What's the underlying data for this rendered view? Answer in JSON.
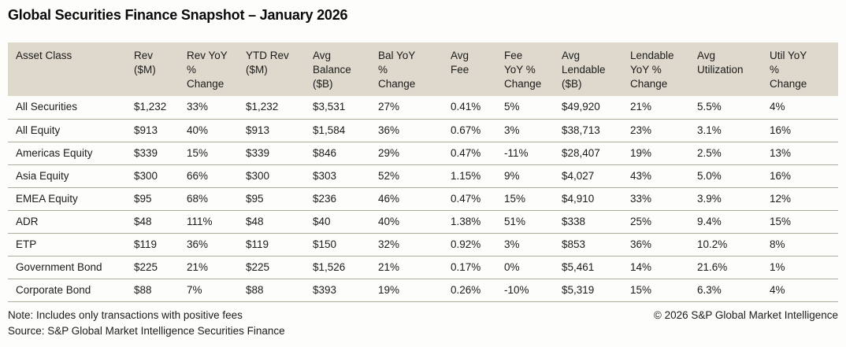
{
  "title": "Global Securities Finance Snapshot – January 2026",
  "chart_data": {
    "type": "table",
    "title": "Global Securities Finance Snapshot – January 2026",
    "columns": [
      "Asset Class",
      "Rev\n($M)",
      "Rev YoY\n%\nChange",
      "YTD Rev\n($M)",
      "Avg\nBalance\n($B)",
      "Bal YoY\n%\nChange",
      "Avg\nFee",
      "Fee\nYoY %\nChange",
      "Avg\nLendable\n($B)",
      "Lendable\nYoY %\nChange",
      "Avg\nUtilization",
      "Util YoY\n%\nChange"
    ],
    "rows": [
      [
        "All Securities",
        "$1,232",
        "33%",
        "$1,232",
        "$3,531",
        "27%",
        "0.41%",
        "5%",
        "$49,920",
        "21%",
        "5.5%",
        "4%"
      ],
      [
        "All Equity",
        "$913",
        "40%",
        "$913",
        "$1,584",
        "36%",
        "0.67%",
        "3%",
        "$38,713",
        "23%",
        "3.1%",
        "16%"
      ],
      [
        "Americas Equity",
        "$339",
        "15%",
        "$339",
        "$846",
        "29%",
        "0.47%",
        "-11%",
        "$28,407",
        "19%",
        "2.5%",
        "13%"
      ],
      [
        "Asia Equity",
        "$300",
        "66%",
        "$300",
        "$303",
        "52%",
        "1.15%",
        "9%",
        "$4,027",
        "43%",
        "5.0%",
        "16%"
      ],
      [
        "EMEA Equity",
        "$95",
        "68%",
        "$95",
        "$236",
        "46%",
        "0.47%",
        "15%",
        "$4,910",
        "33%",
        "3.9%",
        "12%"
      ],
      [
        "ADR",
        "$48",
        "111%",
        "$48",
        "$40",
        "40%",
        "1.38%",
        "51%",
        "$338",
        "25%",
        "9.4%",
        "15%"
      ],
      [
        "ETP",
        "$119",
        "36%",
        "$119",
        "$150",
        "32%",
        "0.92%",
        "3%",
        "$853",
        "36%",
        "10.2%",
        "8%"
      ],
      [
        "Government Bond",
        "$225",
        "21%",
        "$225",
        "$1,526",
        "21%",
        "0.17%",
        "0%",
        "$5,461",
        "14%",
        "21.6%",
        "1%"
      ],
      [
        "Corporate Bond",
        "$88",
        "7%",
        "$88",
        "$393",
        "19%",
        "0.26%",
        "-10%",
        "$5,319",
        "15%",
        "6.3%",
        "4%"
      ]
    ]
  },
  "footer": {
    "note": "Note: Includes only transactions with positive fees",
    "source": "Source: S&P Global Market Intelligence Securities Finance",
    "copyright": "© 2026 S&P Global Market Intelligence"
  },
  "colors": {
    "header_bg": "#ded9cc",
    "divider": "#aeaa9c",
    "text": "#1b1b1b",
    "page_bg": "#fdfdfb"
  }
}
